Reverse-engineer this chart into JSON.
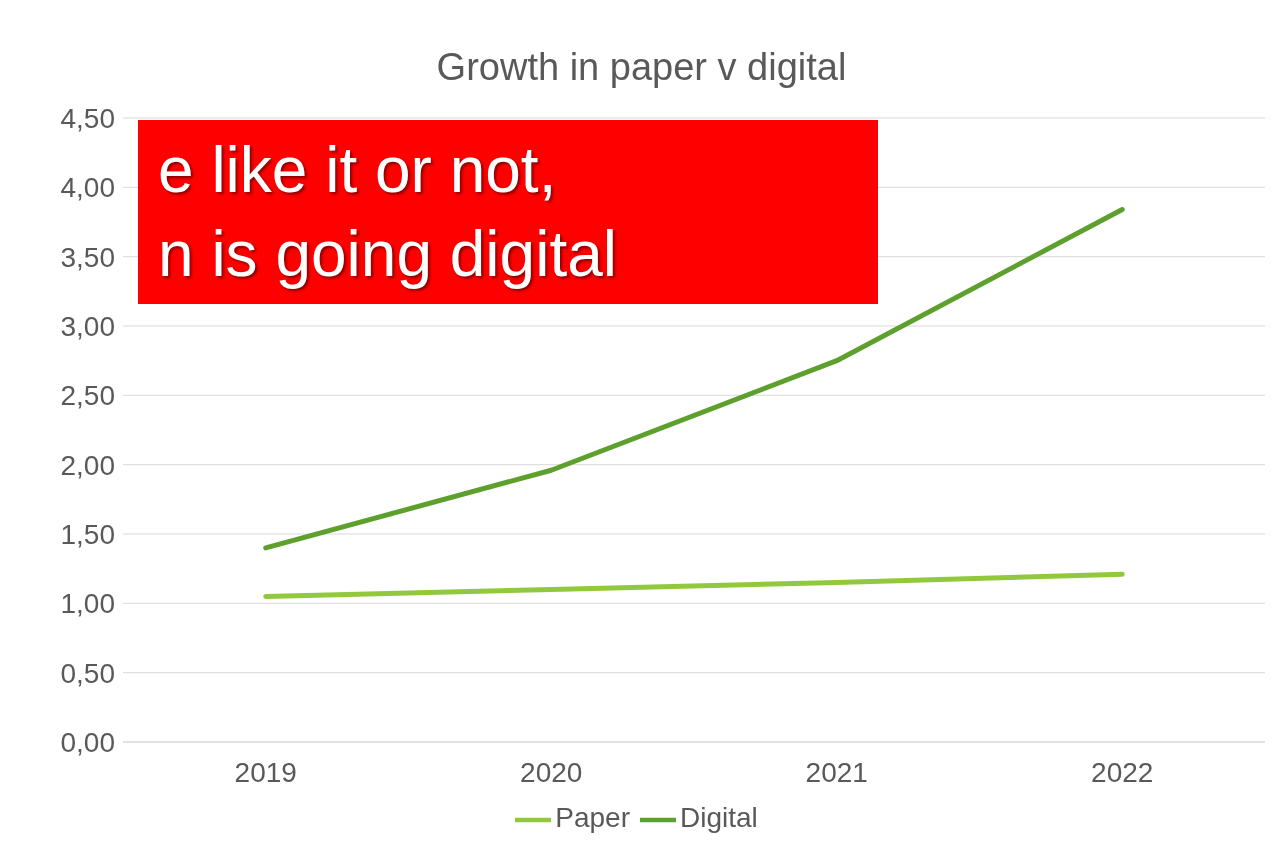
{
  "chart_data": {
    "type": "line",
    "title": "Growth in paper v digital",
    "categories": [
      "2019",
      "2020",
      "2021",
      "2022"
    ],
    "series": [
      {
        "name": "Paper",
        "color": "#92c83e",
        "values": [
          1.05,
          1.1,
          1.15,
          1.21
        ]
      },
      {
        "name": "Digital",
        "color": "#5ea02e",
        "values": [
          1.4,
          1.96,
          2.75,
          3.84
        ]
      }
    ],
    "ylim": [
      0,
      4.5
    ],
    "yticks": [
      {
        "value": 0,
        "label": "0,00"
      },
      {
        "value": 0.5,
        "label": "0,50"
      },
      {
        "value": 1,
        "label": "1,00"
      },
      {
        "value": 1.5,
        "label": "1,50"
      },
      {
        "value": 2,
        "label": "2,00"
      },
      {
        "value": 2.5,
        "label": "2,50"
      },
      {
        "value": 3,
        "label": "3,00"
      },
      {
        "value": 3.5,
        "label": "3,50"
      },
      {
        "value": 4,
        "label": "4,00"
      },
      {
        "value": 4.5,
        "label": "4,50"
      }
    ],
    "grid": "y",
    "legend": "bottom",
    "marker": "none",
    "line_style": "solid",
    "annotations": [
      "e like it or not,",
      "n is going digital"
    ]
  }
}
